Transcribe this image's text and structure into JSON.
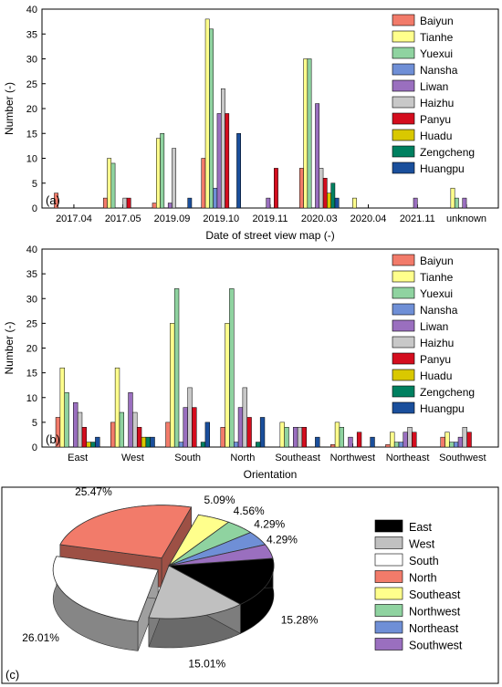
{
  "palette": {
    "Baiyun": "#f27b6a",
    "Tianhe": "#ffff8c",
    "Yuexui": "#8fd3a0",
    "Nansha": "#6f8fd6",
    "Liwan": "#9a6fbf",
    "Haizhu": "#c8c8c8",
    "Panyu": "#d40d1e",
    "Huadu": "#d9c800",
    "Zengcheng": "#008060",
    "Huangpu": "#1a4f9c"
  },
  "chart_data": [
    {
      "id": "a",
      "type": "bar",
      "panel_label": "(a)",
      "xlabel": "Date of street view map (-)",
      "ylabel": "Number (-)",
      "ylim": [
        0,
        40
      ],
      "yticks": [
        "0",
        "5",
        "10",
        "15",
        "20",
        "25",
        "30",
        "35",
        "40"
      ],
      "legend_position": "top-right",
      "grid": false,
      "categories": [
        "2017.04",
        "2017.05",
        "2019.09",
        "2019.10",
        "2019.11",
        "2020.03",
        "2020.04",
        "2021.11",
        "unknown"
      ],
      "series": [
        {
          "name": "Baiyun",
          "values": [
            3,
            2,
            1,
            10,
            0,
            8,
            0,
            0,
            0
          ]
        },
        {
          "name": "Tianhe",
          "values": [
            0,
            10,
            14,
            38,
            0,
            30,
            2,
            0,
            4
          ]
        },
        {
          "name": "Yuexui",
          "values": [
            0,
            9,
            15,
            36,
            0,
            30,
            0,
            0,
            2
          ]
        },
        {
          "name": "Nansha",
          "values": [
            0,
            0,
            0,
            4,
            0,
            0,
            0,
            0,
            0
          ]
        },
        {
          "name": "Liwan",
          "values": [
            0,
            0,
            1,
            19,
            2,
            21,
            0,
            2,
            2
          ]
        },
        {
          "name": "Haizhu",
          "values": [
            0,
            2,
            12,
            24,
            0,
            8,
            0,
            0,
            0
          ]
        },
        {
          "name": "Panyu",
          "values": [
            0,
            2,
            0,
            19,
            8,
            6,
            0,
            0,
            0
          ]
        },
        {
          "name": "Huadu",
          "values": [
            0,
            0,
            0,
            0,
            0,
            3,
            0,
            0,
            0
          ]
        },
        {
          "name": "Zengcheng",
          "values": [
            0,
            0,
            0,
            0,
            0,
            5,
            0,
            0,
            0
          ]
        },
        {
          "name": "Huangpu",
          "values": [
            0,
            0,
            2,
            15,
            0,
            2,
            0,
            0,
            0
          ]
        }
      ]
    },
    {
      "id": "b",
      "type": "bar",
      "panel_label": "(b)",
      "xlabel": "Orientation",
      "ylabel": "Number (-)",
      "ylim": [
        0,
        40
      ],
      "yticks": [
        "0",
        "5",
        "10",
        "15",
        "20",
        "25",
        "30",
        "35",
        "40"
      ],
      "legend_position": "top-right",
      "grid": false,
      "categories": [
        "East",
        "West",
        "South",
        "North",
        "Southeast",
        "Northwest",
        "Northeast",
        "Southwest"
      ],
      "series": [
        {
          "name": "Baiyun",
          "values": [
            6,
            5,
            5,
            4,
            0,
            0.5,
            0.5,
            2
          ]
        },
        {
          "name": "Tianhe",
          "values": [
            16,
            16,
            25,
            25,
            5,
            5,
            3,
            3
          ]
        },
        {
          "name": "Yuexui",
          "values": [
            11,
            7,
            32,
            32,
            4,
            4,
            1,
            1
          ]
        },
        {
          "name": "Nansha",
          "values": [
            0,
            0,
            1,
            1,
            0,
            0,
            1,
            1
          ]
        },
        {
          "name": "Liwan",
          "values": [
            9,
            11,
            8,
            8,
            4,
            2,
            3,
            2
          ]
        },
        {
          "name": "Haizhu",
          "values": [
            7,
            7,
            12,
            12,
            4,
            0,
            4,
            4
          ]
        },
        {
          "name": "Panyu",
          "values": [
            4,
            4,
            8,
            6,
            4,
            3,
            3,
            3
          ]
        },
        {
          "name": "Huadu",
          "values": [
            1,
            2,
            0,
            0,
            0,
            0,
            0,
            0
          ]
        },
        {
          "name": "Zengcheng",
          "values": [
            1,
            2,
            1,
            1,
            0,
            0,
            0,
            0
          ]
        },
        {
          "name": "Huangpu",
          "values": [
            2,
            2,
            5,
            6,
            2,
            2,
            0,
            0
          ]
        }
      ]
    },
    {
      "id": "c",
      "type": "pie",
      "panel_label": "(c)",
      "legend_position": "right",
      "slices": [
        {
          "label": "East",
          "value": 15.28,
          "text": "15.28%",
          "color": "#000000"
        },
        {
          "label": "West",
          "value": 15.01,
          "text": "15.01%",
          "color": "#c0c0c0"
        },
        {
          "label": "South",
          "value": 26.01,
          "text": "26.01%",
          "color": "#ffffff"
        },
        {
          "label": "North",
          "value": 25.47,
          "text": "25.47%",
          "color": "#f27b6a"
        },
        {
          "label": "Southeast",
          "value": 5.09,
          "text": "5.09%",
          "color": "#ffff8c"
        },
        {
          "label": "Northwest",
          "value": 4.56,
          "text": "4.56%",
          "color": "#8fd3a0"
        },
        {
          "label": "Northeast",
          "value": 4.29,
          "text": "4.29%",
          "color": "#6f8fd6"
        },
        {
          "label": "Southwest",
          "value": 4.29,
          "text": "4.29%",
          "color": "#9a6fbf"
        }
      ]
    }
  ]
}
